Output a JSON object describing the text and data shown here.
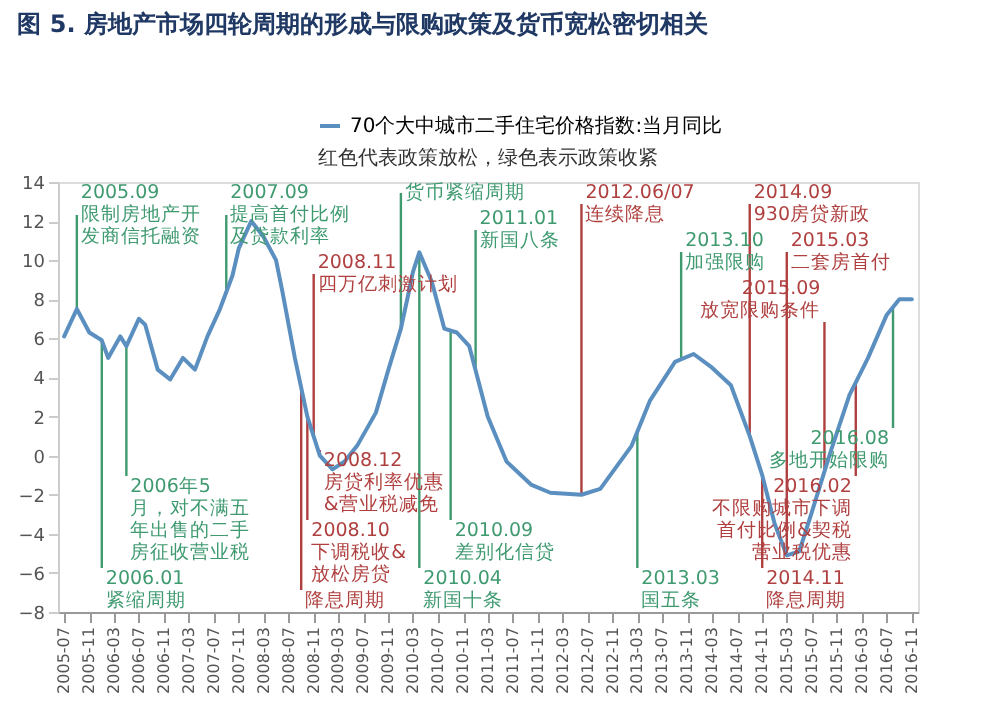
{
  "chart_data": {
    "type": "line",
    "title": "图 5. 房地产市场四轮周期的形成与限购政策及货币宽松密切相关",
    "x": [
      "2005-07",
      "2005-09",
      "2005-11",
      "2006-01",
      "2006-02",
      "2006-04",
      "2006-05",
      "2006-07",
      "2006-08",
      "2006-10",
      "2006-12",
      "2007-02",
      "2007-04",
      "2007-06",
      "2007-08",
      "2007-10",
      "2007-11",
      "2008-01",
      "2008-03",
      "2008-05",
      "2008-06",
      "2008-08",
      "2008-10",
      "2008-12",
      "2009-02",
      "2009-04",
      "2009-06",
      "2009-09",
      "2009-11",
      "2010-01",
      "2010-02",
      "2010-03",
      "2010-04",
      "2010-06",
      "2010-08",
      "2010-10",
      "2010-12",
      "2011-03",
      "2011-06",
      "2011-10",
      "2012-01",
      "2012-06",
      "2012-09",
      "2013-02",
      "2013-05",
      "2013-09",
      "2013-12",
      "2014-03",
      "2014-06",
      "2014-09",
      "2014-11",
      "2015-01",
      "2015-03",
      "2015-05",
      "2015-07",
      "2015-10",
      "2016-01",
      "2016-04",
      "2016-07",
      "2016-09",
      "2016-11"
    ],
    "series": [
      {
        "name": "70个大中城市二手住宅价格指数:当月同比",
        "color": "#5a8fc0",
        "values": [
          6.1,
          7.5,
          6.3,
          5.9,
          5.0,
          6.1,
          5.6,
          7.0,
          6.7,
          4.4,
          3.9,
          5.0,
          4.4,
          6.1,
          7.5,
          9.2,
          10.6,
          12.0,
          11.2,
          10.0,
          8.4,
          5.0,
          2.0,
          0.0,
          -0.7,
          -0.3,
          0.5,
          2.2,
          4.4,
          6.5,
          8.0,
          9.4,
          10.4,
          8.9,
          6.5,
          6.3,
          5.6,
          2.0,
          -0.3,
          -1.5,
          -1.9,
          -2.0,
          -1.7,
          0.5,
          2.8,
          4.8,
          5.2,
          4.5,
          3.6,
          1.0,
          -1.0,
          -3.5,
          -5.1,
          -4.9,
          -2.9,
          0.2,
          3.1,
          5.0,
          7.2,
          8.0,
          8.0
        ]
      }
    ],
    "xlim": [
      "2005-06",
      "2016-12"
    ],
    "xticks": [
      "2005-07",
      "2005-11",
      "2006-03",
      "2006-07",
      "2006-11",
      "2007-03",
      "2007-07",
      "2007-11",
      "2008-03",
      "2008-07",
      "2008-11",
      "2009-03",
      "2009-07",
      "2009-11",
      "2010-03",
      "2010-07",
      "2010-11",
      "2011-03",
      "2011-07",
      "2011-11",
      "2012-03",
      "2012-07",
      "2012-11",
      "2013-03",
      "2013-07",
      "2013-11",
      "2014-03",
      "2014-07",
      "2014-11",
      "2015-03",
      "2015-07",
      "2015-11",
      "2016-03",
      "2016-07",
      "2016-11"
    ],
    "ylim": [
      -8,
      14
    ],
    "yticks": [
      -8,
      -6,
      -4,
      -2,
      0,
      2,
      4,
      6,
      8,
      10,
      12,
      14
    ],
    "grid": false,
    "legend": "top right",
    "annotations": [
      "红色代表政策放松，绿色表示政策收紧"
    ],
    "ref_lines": [
      {
        "axis": "x",
        "value": "2005-09",
        "label": "2005.09\n限制房地产开发商信托融资",
        "color": "#3f9a70"
      },
      {
        "axis": "x",
        "value": "2006-01",
        "label": "2006.01\n紧缩周期",
        "color": "#3f9a70"
      },
      {
        "axis": "x",
        "value": "2006-05",
        "label": "2006年5月，对不满五年出售的二手房征收营业税",
        "color": "#3f9a70"
      },
      {
        "axis": "x",
        "value": "2007-09",
        "label": "2007.09\n提高首付比例及贷款利率",
        "color": "#3f9a70"
      },
      {
        "axis": "x",
        "value": "2008-09",
        "label": "降息周期",
        "color": "#b04040"
      },
      {
        "axis": "x",
        "value": "2008-10",
        "label": "2008.10\n下调税收&放松房贷",
        "color": "#b04040"
      },
      {
        "axis": "x",
        "value": "2008-11",
        "label": "2008.11\n四万亿刺激计划",
        "color": "#b04040"
      },
      {
        "axis": "x",
        "value": "2008-12",
        "label": "2008.12\n房贷利率优惠&营业税减免",
        "color": "#b04040"
      },
      {
        "axis": "x",
        "value": "2010-01",
        "label": "货币紧缩周期",
        "color": "#3f9a70"
      },
      {
        "axis": "x",
        "value": "2010-04",
        "label": "2010.04\n新国十条",
        "color": "#3f9a70"
      },
      {
        "axis": "x",
        "value": "2010-09",
        "label": "2010.09\n差别化信贷",
        "color": "#3f9a70"
      },
      {
        "axis": "x",
        "value": "2011-01",
        "label": "2011.01\n新国八条",
        "color": "#3f9a70"
      },
      {
        "axis": "x",
        "value": "2012-06",
        "label": "2012.06/07\n连续降息",
        "color": "#b04040"
      },
      {
        "axis": "x",
        "value": "2013-03",
        "label": "2013.03\n国五条",
        "color": "#3f9a70"
      },
      {
        "axis": "x",
        "value": "2013-10",
        "label": "2013.10\n加强限购",
        "color": "#3f9a70"
      },
      {
        "axis": "x",
        "value": "2014-09",
        "label": "2014.09\n930房贷新政",
        "color": "#b04040"
      },
      {
        "axis": "x",
        "value": "2014-11",
        "label": "2014.11\n降息周期",
        "color": "#b04040"
      },
      {
        "axis": "x",
        "value": "2015-03",
        "label": "2015.03\n二套房首付",
        "color": "#b04040"
      },
      {
        "axis": "x",
        "value": "2015-09",
        "label": "2015.09\n放宽限购条件",
        "color": "#b04040"
      },
      {
        "axis": "x",
        "value": "2016-02",
        "label": "2016.02\n不限购城市下调首付比例&契税营业税优惠",
        "color": "#b04040"
      },
      {
        "axis": "x",
        "value": "2016-08",
        "label": "2016.08\n多地开始限购",
        "color": "#3f9a70"
      }
    ]
  }
}
